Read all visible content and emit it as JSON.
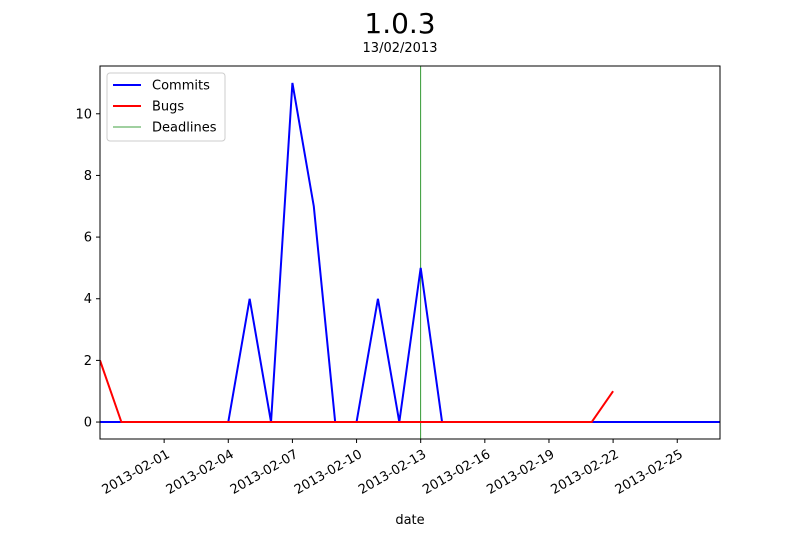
{
  "chart_data": {
    "type": "line",
    "title": "1.0.3",
    "subtitle": "13/02/2013",
    "xlabel": "date",
    "ylabel": "",
    "xlim": [
      "2013-01-29",
      "2013-02-27"
    ],
    "ylim": [
      -0.55,
      11.55
    ],
    "x_tick_labels": [
      "2013-02-01",
      "2013-02-04",
      "2013-02-07",
      "2013-02-10",
      "2013-02-13",
      "2013-02-16",
      "2013-02-19",
      "2013-02-22",
      "2013-02-25"
    ],
    "y_tick_labels": [
      "0",
      "2",
      "4",
      "6",
      "8",
      "10"
    ],
    "grid": false,
    "legend_placement": "upper-left",
    "series": [
      {
        "name": "Commits",
        "color": "#0000ff",
        "points": [
          [
            "2013-01-29",
            0
          ],
          [
            "2013-02-04",
            0
          ],
          [
            "2013-02-05",
            4
          ],
          [
            "2013-02-06",
            0
          ],
          [
            "2013-02-07",
            11
          ],
          [
            "2013-02-08",
            7
          ],
          [
            "2013-02-09",
            0
          ],
          [
            "2013-02-10",
            0
          ],
          [
            "2013-02-11",
            4
          ],
          [
            "2013-02-12",
            0
          ],
          [
            "2013-02-13",
            5
          ],
          [
            "2013-02-14",
            0
          ],
          [
            "2013-02-27",
            0
          ]
        ]
      },
      {
        "name": "Bugs",
        "color": "#ff0000",
        "points": [
          [
            "2013-01-29",
            2
          ],
          [
            "2013-01-30",
            0
          ],
          [
            "2013-02-21",
            0
          ],
          [
            "2013-02-22",
            1
          ]
        ]
      }
    ],
    "deadlines": {
      "name": "Deadlines",
      "color": "#008000",
      "dates": [
        "2013-02-13"
      ]
    }
  }
}
